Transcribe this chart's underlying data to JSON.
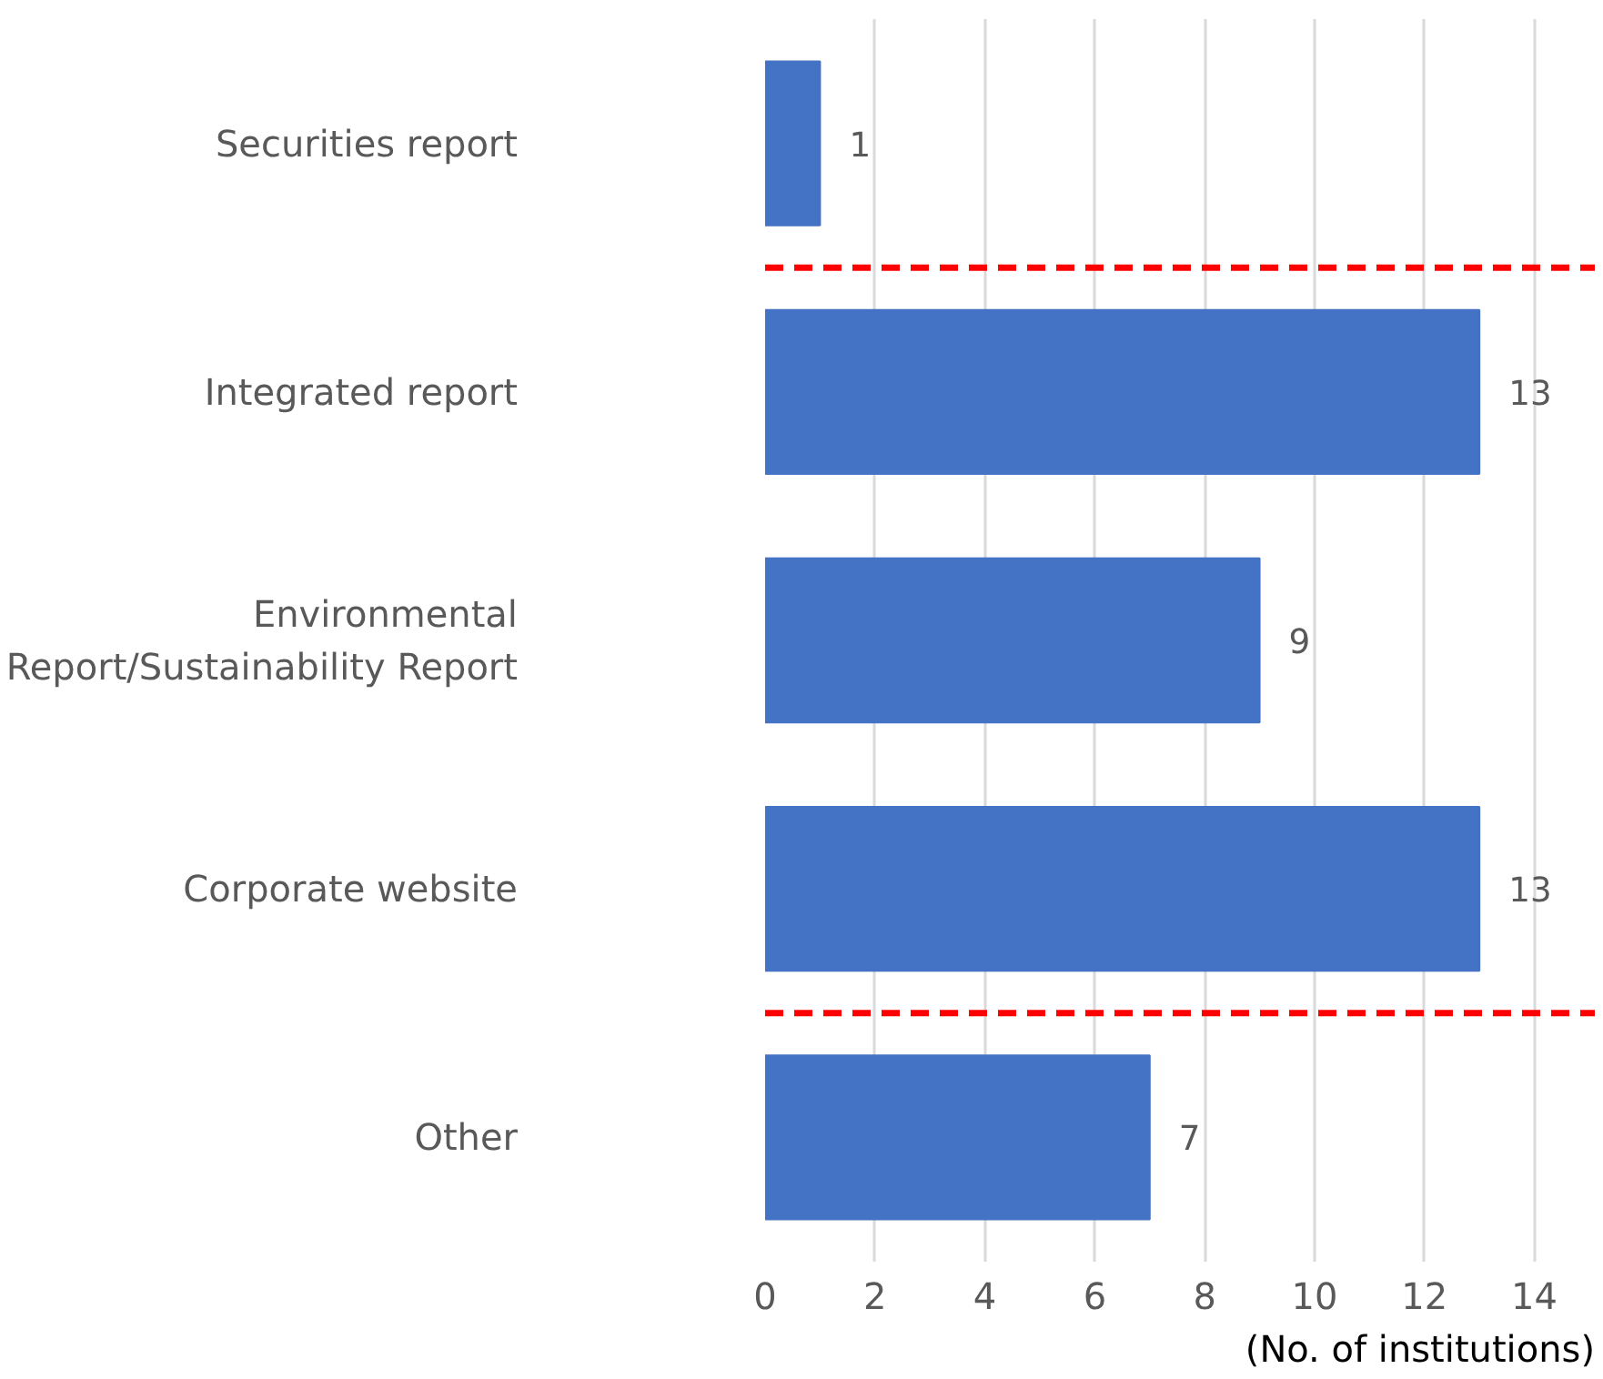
{
  "chart_data": {
    "type": "bar",
    "orientation": "horizontal",
    "categories": [
      "Securities report",
      "Integrated report",
      "Environmental\nReport/Sustainability Report",
      "Corporate website",
      "Other"
    ],
    "values": [
      1,
      13,
      9,
      13,
      7
    ],
    "color": "#4472c4",
    "xlabel": "(No. of institutions)",
    "xlim": [
      0,
      15.1
    ],
    "xticks": [
      0,
      2,
      4,
      6,
      8,
      10,
      12,
      14
    ],
    "grid": "x",
    "data_labels": true
  }
}
